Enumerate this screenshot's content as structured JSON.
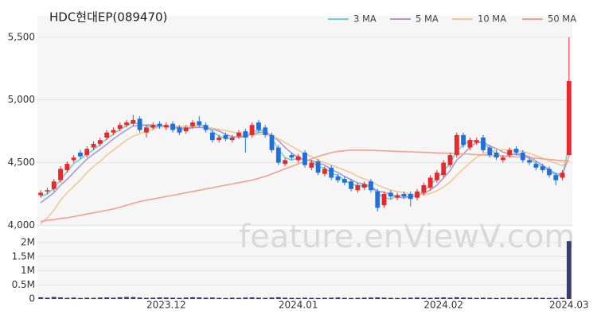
{
  "watermark": "feature.enViewV.com",
  "chart_data": [
    {
      "type": "candlestick",
      "title": "HDC현대EP(089470)",
      "categories": [
        null,
        null,
        null,
        null,
        null,
        null,
        null,
        null,
        null,
        null,
        null,
        null,
        null,
        null,
        null,
        null,
        null,
        null,
        null,
        "2023.12",
        null,
        null,
        null,
        null,
        null,
        null,
        null,
        null,
        null,
        null,
        null,
        null,
        null,
        null,
        null,
        null,
        null,
        null,
        null,
        "2024.01",
        null,
        null,
        null,
        null,
        null,
        null,
        null,
        null,
        null,
        null,
        null,
        null,
        null,
        null,
        null,
        null,
        null,
        null,
        null,
        null,
        null,
        "2024.02",
        null,
        null,
        null,
        null,
        null,
        null,
        null,
        null,
        null,
        null,
        null,
        null,
        null,
        null,
        null,
        null,
        null,
        null,
        "2024.03"
      ],
      "open": [
        4240,
        4270,
        4290,
        4360,
        4440,
        4520,
        4580,
        4560,
        4620,
        4650,
        4700,
        4740,
        4770,
        4800,
        4810,
        4850,
        4740,
        4780,
        4810,
        4780,
        4810,
        4780,
        4750,
        4790,
        4830,
        4800,
        4740,
        4680,
        4720,
        4680,
        4710,
        4750,
        4720,
        4820,
        4780,
        4720,
        4620,
        4490,
        4560,
        4520,
        4580,
        4460,
        4510,
        4410,
        4460,
        4390,
        4370,
        4350,
        4280,
        4300,
        4350,
        4270,
        4160,
        4260,
        4220,
        4250,
        4250,
        4220,
        4260,
        4300,
        4360,
        4400,
        4480,
        4560,
        4720,
        4620,
        4660,
        4700,
        4620,
        4580,
        4520,
        4560,
        4610,
        4580,
        4520,
        4490,
        4470,
        4450,
        4400,
        4380,
        4560
      ],
      "high": [
        4280,
        4300,
        4370,
        4470,
        4510,
        4560,
        4600,
        4630,
        4670,
        4700,
        4760,
        4780,
        4820,
        4840,
        4880,
        4870,
        4800,
        4820,
        4830,
        4820,
        4830,
        4800,
        4800,
        4840,
        4870,
        4820,
        4760,
        4720,
        4740,
        4720,
        4760,
        4770,
        4820,
        4840,
        4800,
        4740,
        4640,
        4540,
        4580,
        4570,
        4600,
        4520,
        4530,
        4470,
        4480,
        4410,
        4390,
        4370,
        4340,
        4350,
        4370,
        4290,
        4270,
        4280,
        4260,
        4270,
        4270,
        4290,
        4340,
        4400,
        4440,
        4520,
        4580,
        4740,
        4740,
        4700,
        4700,
        4720,
        4640,
        4600,
        4560,
        4620,
        4630,
        4600,
        4540,
        4510,
        4490,
        4470,
        4420,
        4440,
        5500
      ],
      "low": [
        4220,
        4250,
        4270,
        4340,
        4420,
        4500,
        4530,
        4540,
        4600,
        4630,
        4680,
        4720,
        4750,
        4780,
        4790,
        4740,
        4700,
        4760,
        4770,
        4760,
        4740,
        4720,
        4730,
        4770,
        4780,
        4740,
        4660,
        4660,
        4670,
        4660,
        4690,
        4580,
        4700,
        4740,
        4700,
        4580,
        4480,
        4470,
        4520,
        4500,
        4460,
        4440,
        4400,
        4390,
        4360,
        4340,
        4320,
        4270,
        4260,
        4280,
        4260,
        4110,
        4140,
        4210,
        4200,
        4210,
        4150,
        4200,
        4240,
        4280,
        4340,
        4380,
        4460,
        4540,
        4620,
        4600,
        4640,
        4580,
        4540,
        4520,
        4500,
        4540,
        4560,
        4500,
        4480,
        4440,
        4420,
        4380,
        4320,
        4360,
        4560
      ],
      "close": [
        4260,
        4280,
        4350,
        4450,
        4490,
        4540,
        4550,
        4610,
        4650,
        4680,
        4740,
        4760,
        4800,
        4820,
        4840,
        4760,
        4780,
        4800,
        4790,
        4800,
        4760,
        4740,
        4780,
        4820,
        4800,
        4760,
        4680,
        4700,
        4690,
        4700,
        4740,
        4700,
        4800,
        4760,
        4720,
        4600,
        4500,
        4520,
        4540,
        4550,
        4480,
        4500,
        4420,
        4450,
        4380,
        4360,
        4340,
        4290,
        4320,
        4330,
        4280,
        4140,
        4250,
        4230,
        4240,
        4230,
        4210,
        4270,
        4320,
        4380,
        4420,
        4500,
        4560,
        4720,
        4640,
        4680,
        4680,
        4600,
        4560,
        4540,
        4540,
        4600,
        4580,
        4520,
        4500,
        4460,
        4440,
        4400,
        4360,
        4420,
        5150
      ],
      "up_color": "#e8282a",
      "down_color": "#1f6fdc",
      "series": [
        {
          "name": "3 MA",
          "color": "#6fd2c2",
          "values": [
            4230,
            4250,
            4297,
            4360,
            4430,
            4493,
            4527,
            4567,
            4603,
            4647,
            4690,
            4727,
            4767,
            4793,
            4820,
            4807,
            4793,
            4780,
            4790,
            4797,
            4783,
            4767,
            4760,
            4780,
            4800,
            4793,
            4747,
            4713,
            4690,
            4697,
            4710,
            4713,
            4747,
            4753,
            4760,
            4693,
            4607,
            4540,
            4520,
            4537,
            4523,
            4510,
            4467,
            4457,
            4417,
            4397,
            4360,
            4330,
            4317,
            4313,
            4310,
            4250,
            4223,
            4207,
            4240,
            4233,
            4227,
            4237,
            4267,
            4323,
            4373,
            4433,
            4493,
            4593,
            4640,
            4680,
            4667,
            4653,
            4613,
            4567,
            4547,
            4560,
            4573,
            4567,
            4533,
            4493,
            4467,
            4433,
            4400,
            4393,
            4643
          ]
        },
        {
          "name": "5 MA",
          "color": "#ab9ad2",
          "values": [
            4180,
            4220,
            4260,
            4320,
            4366,
            4422,
            4476,
            4528,
            4568,
            4606,
            4646,
            4688,
            4726,
            4760,
            4792,
            4796,
            4800,
            4800,
            4794,
            4786,
            4786,
            4778,
            4774,
            4780,
            4780,
            4780,
            4768,
            4752,
            4726,
            4706,
            4702,
            4706,
            4726,
            4740,
            4744,
            4716,
            4676,
            4620,
            4576,
            4542,
            4518,
            4518,
            4498,
            4480,
            4446,
            4422,
            4390,
            4364,
            4338,
            4328,
            4312,
            4272,
            4264,
            4246,
            4228,
            4218,
            4230,
            4236,
            4254,
            4282,
            4320,
            4378,
            4436,
            4520,
            4568,
            4624,
            4660,
            4664,
            4632,
            4612,
            4584,
            4568,
            4564,
            4560,
            4548,
            4512,
            4480,
            4444,
            4412,
            4404,
            4554
          ]
        },
        {
          "name": "10 MA",
          "color": "#f2c894",
          "values": [
            4010,
            4060,
            4120,
            4200,
            4260,
            4310,
            4360,
            4420,
            4470,
            4510,
            4560,
            4600,
            4640,
            4680,
            4710,
            4730,
            4750,
            4770,
            4780,
            4790,
            4790,
            4790,
            4790,
            4790,
            4790,
            4785,
            4775,
            4765,
            4755,
            4745,
            4735,
            4725,
            4720,
            4725,
            4725,
            4710,
            4690,
            4660,
            4630,
            4600,
            4570,
            4550,
            4520,
            4500,
            4480,
            4460,
            4440,
            4420,
            4390,
            4370,
            4350,
            4320,
            4300,
            4280,
            4270,
            4260,
            4250,
            4245,
            4245,
            4255,
            4275,
            4305,
            4345,
            4400,
            4450,
            4500,
            4540,
            4570,
            4590,
            4600,
            4605,
            4600,
            4595,
            4590,
            4575,
            4555,
            4535,
            4515,
            4495,
            4475,
            4540
          ]
        },
        {
          "name": "50 MA",
          "color": "#f5a08e",
          "values": [
            4030,
            4040,
            4045,
            4055,
            4060,
            4070,
            4080,
            4090,
            4100,
            4110,
            4120,
            4130,
            4145,
            4160,
            4175,
            4190,
            4200,
            4210,
            4220,
            4230,
            4240,
            4250,
            4260,
            4270,
            4280,
            4290,
            4300,
            4310,
            4320,
            4330,
            4340,
            4350,
            4360,
            4375,
            4390,
            4410,
            4430,
            4450,
            4470,
            4490,
            4510,
            4530,
            4550,
            4565,
            4580,
            4590,
            4595,
            4600,
            4600,
            4600,
            4598,
            4596,
            4594,
            4592,
            4590,
            4588,
            4586,
            4584,
            4582,
            4580,
            4578,
            4576,
            4574,
            4572,
            4570,
            4567,
            4564,
            4561,
            4558,
            4555,
            4552,
            4549,
            4546,
            4543,
            4540,
            4535,
            4530,
            4525,
            4520,
            4515,
            4515
          ]
        }
      ],
      "ylim": [
        3990,
        5670
      ],
      "yticks": [
        {
          "value": 4000,
          "label": "4,000"
        },
        {
          "value": 4500,
          "label": "4,500"
        },
        {
          "value": 5000,
          "label": "5,000"
        },
        {
          "value": 5500,
          "label": "5,500"
        }
      ],
      "grid": true,
      "legend": "top-right"
    },
    {
      "type": "bar",
      "values": [
        60000,
        45000,
        70000,
        55000,
        40000,
        50000,
        35000,
        45000,
        40000,
        50000,
        55000,
        45000,
        60000,
        70000,
        65000,
        50000,
        40000,
        45000,
        55000,
        50000,
        45000,
        40000,
        50000,
        60000,
        55000,
        45000,
        50000,
        40000,
        35000,
        45000,
        40000,
        50000,
        55000,
        45000,
        40000,
        50000,
        60000,
        45000,
        40000,
        35000,
        45000,
        40000,
        35000,
        40000,
        45000,
        50000,
        40000,
        35000,
        40000,
        45000,
        50000,
        55000,
        45000,
        40000,
        35000,
        40000,
        45000,
        50000,
        45000,
        40000,
        50000,
        55000,
        45000,
        60000,
        50000,
        45000,
        40000,
        45000,
        40000,
        35000,
        40000,
        45000,
        40000,
        35000,
        40000,
        45000,
        40000,
        35000,
        40000,
        45000,
        2050000
      ],
      "color": "#3b3d6e",
      "ylim": [
        0,
        2480000
      ],
      "yticks": [
        0,
        {
          "value": 500000,
          "label": "0.5M"
        },
        {
          "value": 1000000,
          "label": "1M"
        },
        {
          "value": 1500000,
          "label": "1.5M"
        },
        {
          "value": 2000000,
          "label": "2M"
        }
      ]
    }
  ]
}
